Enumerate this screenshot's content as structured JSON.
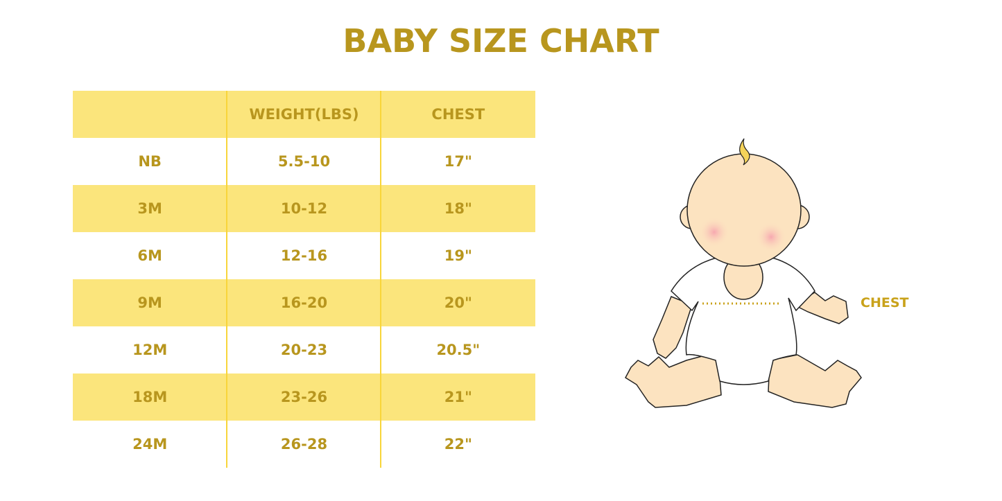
{
  "title": "BABY SIZE CHART",
  "table": {
    "headers": [
      "",
      "WEIGHT(LBS)",
      "CHEST"
    ],
    "rows": [
      [
        "NB",
        "5.5-10",
        "17\""
      ],
      [
        "3M",
        "10-12",
        "18\""
      ],
      [
        "6M",
        "12-16",
        "19\""
      ],
      [
        "9M",
        "16-20",
        "20\""
      ],
      [
        "12M",
        "20-23",
        "20.5\""
      ],
      [
        "18M",
        "23-26",
        "21\""
      ],
      [
        "24M",
        "26-28",
        "22\""
      ]
    ]
  },
  "illustration": {
    "chest_label": "CHEST"
  },
  "colors": {
    "accent_text": "#B8961E",
    "row_highlight": "#FBE57C",
    "divider": "#F8D53A"
  }
}
